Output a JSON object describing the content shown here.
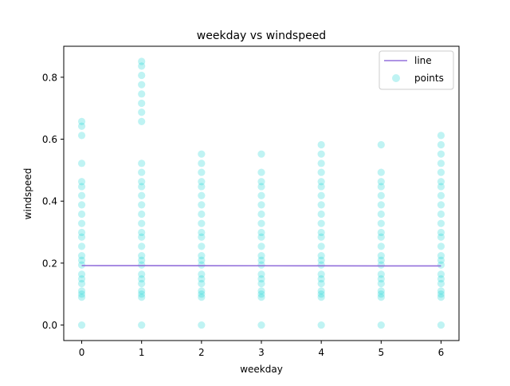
{
  "chart_data": {
    "type": "scatter",
    "title": "weekday vs windspeed",
    "xlabel": "weekday",
    "ylabel": "windspeed",
    "xlim": [
      -0.3,
      6.3
    ],
    "ylim": [
      -0.05,
      0.9
    ],
    "xticks": [
      0,
      1,
      2,
      3,
      4,
      5,
      6
    ],
    "yticks": [
      0.0,
      0.2,
      0.4,
      0.6,
      0.8
    ],
    "ytick_labels": [
      "0.0",
      "0.2",
      "0.4",
      "0.6",
      "0.8"
    ],
    "grid": false,
    "legend_position": "top-right",
    "colors": {
      "line": "#9370db",
      "points": "#00ced1"
    },
    "series": [
      {
        "name": "line",
        "kind": "line",
        "x": [
          0,
          1,
          2,
          3,
          4,
          5,
          6
        ],
        "y": [
          0.192,
          0.1918,
          0.1916,
          0.1914,
          0.1912,
          0.191,
          0.1908
        ]
      },
      {
        "name": "points",
        "kind": "scatter",
        "points": [
          {
            "x": 0,
            "y": [
              0.0,
              0.09,
              0.1,
              0.11,
              0.134,
              0.149,
              0.164,
              0.194,
              0.209,
              0.224,
              0.254,
              0.284,
              0.299,
              0.328,
              0.358,
              0.388,
              0.418,
              0.447,
              0.463,
              0.522,
              0.612,
              0.642,
              0.657
            ]
          },
          {
            "x": 1,
            "y": [
              0.0,
              0.09,
              0.1,
              0.11,
              0.134,
              0.149,
              0.164,
              0.194,
              0.209,
              0.224,
              0.254,
              0.284,
              0.299,
              0.328,
              0.358,
              0.388,
              0.418,
              0.447,
              0.463,
              0.493,
              0.522,
              0.657,
              0.687,
              0.716,
              0.746,
              0.776,
              0.806,
              0.836,
              0.851
            ]
          },
          {
            "x": 2,
            "y": [
              0.0,
              0.09,
              0.1,
              0.11,
              0.134,
              0.149,
              0.164,
              0.194,
              0.209,
              0.224,
              0.254,
              0.284,
              0.299,
              0.328,
              0.358,
              0.388,
              0.418,
              0.447,
              0.463,
              0.493,
              0.522,
              0.552
            ]
          },
          {
            "x": 3,
            "y": [
              0.0,
              0.09,
              0.1,
              0.11,
              0.134,
              0.149,
              0.164,
              0.194,
              0.209,
              0.224,
              0.254,
              0.284,
              0.299,
              0.328,
              0.358,
              0.388,
              0.418,
              0.447,
              0.463,
              0.493,
              0.552
            ]
          },
          {
            "x": 4,
            "y": [
              0.0,
              0.09,
              0.1,
              0.11,
              0.134,
              0.149,
              0.164,
              0.194,
              0.209,
              0.224,
              0.254,
              0.284,
              0.299,
              0.328,
              0.358,
              0.388,
              0.418,
              0.447,
              0.463,
              0.493,
              0.522,
              0.552,
              0.582
            ]
          },
          {
            "x": 5,
            "y": [
              0.0,
              0.09,
              0.1,
              0.11,
              0.134,
              0.149,
              0.164,
              0.194,
              0.209,
              0.224,
              0.254,
              0.284,
              0.299,
              0.328,
              0.358,
              0.388,
              0.418,
              0.447,
              0.463,
              0.493,
              0.582
            ]
          },
          {
            "x": 6,
            "y": [
              0.0,
              0.09,
              0.1,
              0.11,
              0.134,
              0.149,
              0.164,
              0.194,
              0.209,
              0.224,
              0.254,
              0.284,
              0.299,
              0.328,
              0.358,
              0.388,
              0.418,
              0.447,
              0.463,
              0.493,
              0.522,
              0.552,
              0.582,
              0.612
            ]
          }
        ]
      }
    ],
    "legend": [
      "line",
      "points"
    ]
  }
}
